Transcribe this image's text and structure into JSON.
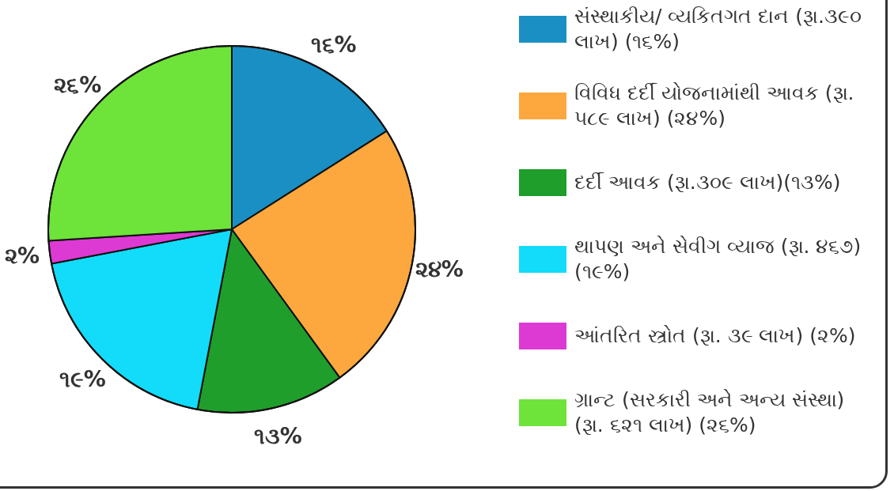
{
  "chart_data": {
    "type": "pie",
    "categories": [
      "સંસ્થાકીય/ વ્યકિતગત દાન (રૂા.૩૯૦ લાખ) (૧૬%)",
      "વિવિધ દર્દી યોજનામાંથી આવક (રૂા. ૫૮૯ લાખ) (૨૪%)",
      "દર્દી આવક (રૂા.૩૦૯ લાખ)(૧૩%)",
      "થાપણ અને સેવીગ વ્યાજ (રૂા. ૪૬૭) (૧૯%)",
      "આંતરિત સ્ત્રોત (રૂા. ૩૯ લાખ) (૨%)",
      "ગ્રાન્ટ (સરકારી અને અન્ય સંસ્થા) (રૂા. ૬૨૧ લાખ) (૨૬%)"
    ],
    "values": [
      16,
      24,
      13,
      19,
      2,
      26
    ],
    "value_labels": [
      "૧૬%",
      "૨૪%",
      "૧૩%",
      "૧૯%",
      "૨%",
      "૨૬%"
    ],
    "colors": [
      "#1a8fc4",
      "#fda83e",
      "#1f9e2b",
      "#12dcfa",
      "#dd3ad4",
      "#6ee33a"
    ],
    "legend": "right"
  }
}
